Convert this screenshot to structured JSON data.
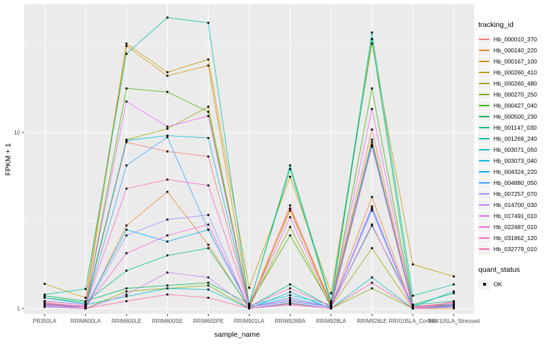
{
  "chart_data": {
    "type": "line",
    "title": "",
    "xlabel": "sample_name",
    "ylabel": "FPKM + 1",
    "y_scale": "log10",
    "ylim": [
      0.93,
      53
    ],
    "y_ticks": [
      "1",
      "10"
    ],
    "grid": true,
    "marker": "square",
    "x_categories": [
      "PB350LA",
      "RRIM600LA",
      "RRIM600LE",
      "RRIM600SE",
      "RRIM600PE",
      "RRIM901LA",
      "RRIM928BA",
      "RRIM928LA",
      "RRIM928LE",
      "RRII105LA_Control",
      "RRII105LA_Stressed"
    ],
    "style": {
      "panel_bg": "#EBEBEB",
      "grid_color": "#FFFFFF",
      "tick_label_color": "#4D4D4D",
      "marker_color": "#000000"
    },
    "series": [
      {
        "name": "Hb_000010_370",
        "color": "#F8766D",
        "values": [
          1.08,
          1.02,
          8.8,
          7.8,
          7.3,
          1.03,
          3.85,
          1.05,
          10.4,
          1.0,
          1.03
        ]
      },
      {
        "name": "Hb_000140_220",
        "color": "#E88526",
        "values": [
          1.05,
          1.0,
          2.96,
          4.6,
          2.3,
          1.0,
          3.7,
          1.03,
          4.3,
          1.0,
          1.0
        ]
      },
      {
        "name": "Hb_000167_100",
        "color": "#D89000",
        "values": [
          1.1,
          1.05,
          31,
          21,
          24,
          1.05,
          3.6,
          1.08,
          9.1,
          1.02,
          1.05
        ]
      },
      {
        "name": "Hb_000260_410",
        "color": "#C09B00",
        "values": [
          1.38,
          1.15,
          32,
          22,
          26,
          1.31,
          5.6,
          1.22,
          32,
          1.78,
          1.52
        ]
      },
      {
        "name": "Hb_000260_480",
        "color": "#A3A500",
        "values": [
          1.05,
          1.02,
          9.1,
          10.5,
          14,
          1.02,
          2.9,
          1.02,
          2.2,
          1.0,
          1.02
        ]
      },
      {
        "name": "Hb_000270_250",
        "color": "#7CAE00",
        "values": [
          1.02,
          1.0,
          1.25,
          1.3,
          1.35,
          1.0,
          1.07,
          1.0,
          1.3,
          1.0,
          1.02
        ]
      },
      {
        "name": "Hb_000427_040",
        "color": "#39B600",
        "values": [
          1.06,
          1.03,
          17.8,
          17,
          13.1,
          1.05,
          2.6,
          1.04,
          17.8,
          1.03,
          1.06
        ]
      },
      {
        "name": "Hb_000500_230",
        "color": "#00BB4E",
        "values": [
          1.18,
          1.1,
          1.3,
          1.35,
          1.4,
          1.06,
          6.2,
          1.07,
          34,
          1.05,
          1.22
        ]
      },
      {
        "name": "Hb_001147_030",
        "color": "#00BF7D",
        "values": [
          1.15,
          1.08,
          1.64,
          2.0,
          2.2,
          1.02,
          1.37,
          1.02,
          2.95,
          1.05,
          1.1
        ]
      },
      {
        "name": "Hb_001269_240",
        "color": "#00C1A3",
        "values": [
          1.2,
          1.29,
          28,
          45,
          42,
          1.05,
          6.5,
          1.1,
          37,
          1.18,
          1.37
        ]
      },
      {
        "name": "Hb_003071_050",
        "color": "#00BFC4",
        "values": [
          1.1,
          1.05,
          1.17,
          1.3,
          1.28,
          1.0,
          1.24,
          1.0,
          1.5,
          1.0,
          1.05
        ]
      },
      {
        "name": "Hb_003073_040",
        "color": "#00BAE0",
        "values": [
          1.15,
          1.06,
          9.0,
          9.6,
          9.3,
          1.04,
          1.19,
          1.05,
          8.8,
          1.02,
          1.25
        ]
      },
      {
        "name": "Hb_004324_220",
        "color": "#00B0F6",
        "values": [
          1.05,
          1.02,
          2.8,
          2.4,
          2.8,
          1.02,
          1.15,
          1.02,
          8.5,
          1.0,
          1.04
        ]
      },
      {
        "name": "Hb_004880_050",
        "color": "#35A2FF",
        "values": [
          1.04,
          1.02,
          6.5,
          9.4,
          2.8,
          1.02,
          1.1,
          1.02,
          3.7,
          1.0,
          1.03
        ]
      },
      {
        "name": "Hb_007257_070",
        "color": "#9590FF",
        "values": [
          1.03,
          1.0,
          2.6,
          3.2,
          3.4,
          1.0,
          1.08,
          1.0,
          3.6,
          1.0,
          1.02
        ]
      },
      {
        "name": "Hb_014700_030",
        "color": "#C77CFF",
        "values": [
          1.02,
          1.0,
          1.2,
          1.6,
          1.5,
          1.0,
          1.06,
          1.0,
          3.8,
          1.0,
          1.02
        ]
      },
      {
        "name": "Hb_017491_010",
        "color": "#E76BF3",
        "values": [
          1.1,
          1.05,
          15,
          10.8,
          12.4,
          1.03,
          3.3,
          1.04,
          13.6,
          1.02,
          1.06
        ]
      },
      {
        "name": "Hb_022487_010",
        "color": "#FA62DB",
        "values": [
          1.06,
          1.02,
          2.06,
          2.6,
          3.0,
          1.02,
          1.12,
          1.02,
          3.0,
          1.0,
          1.04
        ]
      },
      {
        "name": "Hb_031862_120",
        "color": "#FF61C9",
        "values": [
          1.07,
          1.03,
          4.8,
          5.4,
          5.0,
          1.03,
          1.3,
          1.03,
          8.3,
          1.02,
          1.08
        ]
      },
      {
        "name": "Hb_032779_010",
        "color": "#FF67A4",
        "values": [
          1.05,
          1.0,
          1.1,
          1.2,
          1.15,
          1.0,
          1.05,
          1.0,
          1.4,
          1.0,
          1.09
        ]
      }
    ],
    "legends": [
      {
        "title": "tracking_id",
        "type": "line"
      },
      {
        "title": "quant_status",
        "type": "point",
        "entries": [
          {
            "label": "OK",
            "color": "#000000"
          }
        ]
      }
    ]
  }
}
